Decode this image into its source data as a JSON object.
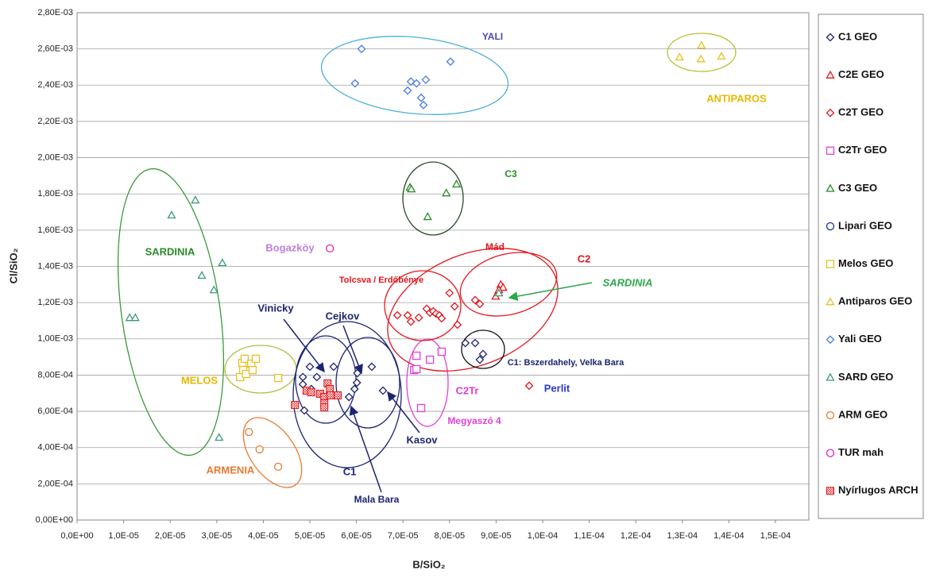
{
  "chart_data": {
    "type": "scatter",
    "x_label": "B/SiO₂",
    "y_label": "Cl/SiO₂",
    "xlim": [
      0,
      0.00015
    ],
    "ylim": [
      0,
      0.0028
    ],
    "grid": true,
    "legend": "right",
    "xticks": [
      {
        "value": 0,
        "label": "0,0E+00"
      },
      {
        "value": 1e-05,
        "label": "1,0E-05"
      },
      {
        "value": 2e-05,
        "label": "2,0E-05"
      },
      {
        "value": 3e-05,
        "label": "3,0E-05"
      },
      {
        "value": 4e-05,
        "label": "4,0E-05"
      },
      {
        "value": 5e-05,
        "label": "5,0E-05"
      },
      {
        "value": 6e-05,
        "label": "6,0E-05"
      },
      {
        "value": 7e-05,
        "label": "7,0E-05"
      },
      {
        "value": 8e-05,
        "label": "8,0E-05"
      },
      {
        "value": 9e-05,
        "label": "9,0E-05"
      },
      {
        "value": 0.0001,
        "label": "1,0E-04"
      },
      {
        "value": 0.00011,
        "label": "1,1E-04"
      },
      {
        "value": 0.00012,
        "label": "1,2E-04"
      },
      {
        "value": 0.00013,
        "label": "1,3E-04"
      },
      {
        "value": 0.00014,
        "label": "1,4E-04"
      },
      {
        "value": 0.00015,
        "label": "1,5E-04"
      }
    ],
    "yticks": [
      {
        "value": 0,
        "label": "0,00E+00"
      },
      {
        "value": 0.0002,
        "label": "2,00E-04"
      },
      {
        "value": 0.0004,
        "label": "4,00E-04"
      },
      {
        "value": 0.0006,
        "label": "6,00E-04"
      },
      {
        "value": 0.0008,
        "label": "8,00E-04"
      },
      {
        "value": 0.001,
        "label": "1,00E-03"
      },
      {
        "value": 0.0012,
        "label": "1,20E-03"
      },
      {
        "value": 0.0014,
        "label": "1,40E-03"
      },
      {
        "value": 0.0016,
        "label": "1,60E-03"
      },
      {
        "value": 0.0018,
        "label": "1,80E-03"
      },
      {
        "value": 0.002,
        "label": "2,00E-03"
      },
      {
        "value": 0.0022,
        "label": "2,20E-03"
      },
      {
        "value": 0.0024,
        "label": "2,40E-03"
      },
      {
        "value": 0.0026,
        "label": "2,60E-03"
      },
      {
        "value": 0.0028,
        "label": "2,80E-03"
      }
    ],
    "series": [
      {
        "name": "C1 GEO",
        "color": "#1c2470",
        "marker": "diamond",
        "x": [
          5e-05,
          4.85e-05,
          4.85e-05,
          5.03e-05,
          5.15e-05,
          5.51e-05,
          4.88e-05,
          5.84e-05,
          5.96e-05,
          6.01e-05,
          6.02e-05,
          6.33e-05,
          6.57e-05,
          8.34e-05,
          8.55e-05,
          8.72e-05,
          8.65e-05
        ],
        "values": [
          0.000846,
          0.000789,
          0.000749,
          0.000723,
          0.000789,
          0.000846,
          0.000605,
          0.000679,
          0.000723,
          0.000758,
          0.000811,
          0.000846,
          0.000714,
          0.000977,
          0.000977,
          0.000916,
          0.000885
        ]
      },
      {
        "name": "C2E GEO",
        "color": "#e3161c",
        "marker": "triangle",
        "x": [
          8.99e-05,
          9.1e-05,
          9.15e-05,
          9.06e-05
        ],
        "values": [
          0.001235,
          0.0013,
          0.001284,
          0.001271
        ]
      },
      {
        "name": "C2T GEO",
        "color": "#e3161c",
        "marker": "diamond",
        "x": [
          6.88e-05,
          7.1e-05,
          7.17e-05,
          7.34e-05,
          7.51e-05,
          7.58e-05,
          7.65e-05,
          7.71e-05,
          7.78e-05,
          7.83e-05,
          8e-05,
          8.11e-05,
          8.17e-05,
          8.55e-05,
          8.65e-05,
          9.71e-05
        ],
        "values": [
          0.00113,
          0.00113,
          0.001095,
          0.001117,
          0.001166,
          0.001144,
          0.001152,
          0.001139,
          0.00113,
          0.001113,
          0.001253,
          0.001179,
          0.001078,
          0.001214,
          0.001192,
          0.000741
        ]
      },
      {
        "name": "C2Tr GEO",
        "color": "#e040d8",
        "marker": "square",
        "x": [
          7.29e-05,
          7.24e-05,
          7.29e-05,
          7.58e-05,
          7.83e-05,
          7.39e-05
        ],
        "values": [
          0.000907,
          0.000828,
          0.000833,
          0.000885,
          0.000929,
          0.000618
        ]
      },
      {
        "name": "C3 GEO",
        "color": "#2a8a2a",
        "marker": "triangle",
        "x": [
          7.15e-05,
          7.18e-05,
          7.93e-05,
          8.15e-05,
          7.53e-05
        ],
        "values": [
          0.001836,
          0.001827,
          0.001805,
          0.001854,
          0.001674
        ]
      },
      {
        "name": "Lipari GEO",
        "color": "#1a2a9a",
        "marker": "circle",
        "x": [],
        "values": []
      },
      {
        "name": "Melos GEO",
        "color": "#e8c020",
        "marker": "square",
        "x": [
          3.5e-05,
          3.57e-05,
          3.55e-05,
          3.6e-05,
          3.74e-05,
          3.84e-05,
          3.63e-05,
          3.77e-05,
          4.32e-05
        ],
        "values": [
          0.000789,
          0.000828,
          0.000868,
          0.00089,
          0.000863,
          0.00089,
          0.000806,
          0.000828,
          0.000784
        ]
      },
      {
        "name": "Antiparos GEO",
        "color": "#e8c020",
        "marker": "triangle",
        "x": [
          0.0001294,
          0.0001341,
          0.000134,
          0.0001384
        ],
        "values": [
          0.002555,
          0.00262,
          0.002545,
          0.00256
        ]
      },
      {
        "name": "Yali GEO",
        "color": "#4a7ae0",
        "marker": "diamond",
        "x": [
          6.11e-05,
          5.97e-05,
          7.1e-05,
          7.17e-05,
          7.29e-05,
          7.49e-05,
          7.39e-05,
          7.44e-05,
          8.02e-05
        ],
        "values": [
          0.0026,
          0.00241,
          0.00237,
          0.00242,
          0.00241,
          0.00243,
          0.00233,
          0.00229,
          0.00253
        ]
      },
      {
        "name": "SARD GEO",
        "color": "#3a9a7a",
        "marker": "triangle",
        "x": [
          1.13e-05,
          1.25e-05,
          2.03e-05,
          2.54e-05,
          2.68e-05,
          3.12e-05,
          2.94e-05,
          3.05e-05,
          9.06e-05
        ],
        "values": [
          0.001117,
          0.001117,
          0.001683,
          0.001766,
          0.00135,
          0.00142,
          0.00127,
          0.000456,
          0.001253
        ]
      },
      {
        "name": "ARM GEO",
        "color": "#e87a30",
        "marker": "circle",
        "x": [
          3.69e-05,
          3.92e-05,
          4.32e-05
        ],
        "values": [
          0.000486,
          0.00039,
          0.000294
        ]
      },
      {
        "name": "TUR mah",
        "color": "#e020c0",
        "marker": "circle",
        "x": [
          5.43e-05
        ],
        "values": [
          0.001499
        ]
      },
      {
        "name": "Nyírlugos ARCH",
        "color": "#e3161c",
        "marker": "xsquare",
        "x": [
          4.68e-05,
          4.93e-05,
          5.03e-05,
          5.22e-05,
          5.31e-05,
          5.31e-05,
          5.31e-05,
          5.38e-05,
          5.43e-05,
          5.44e-05,
          5.6e-05
        ],
        "values": [
          0.000635,
          0.000714,
          0.000705,
          0.000697,
          0.000679,
          0.000644,
          0.000622,
          0.000754,
          0.000723,
          0.000688,
          0.000688
        ]
      }
    ],
    "annotations": [
      "YALI",
      "ANTIPAROS",
      "C3",
      "SARDINIA",
      "Bogazköy",
      "Mád",
      "C2",
      "Tolcsva / Erdőbénye",
      "SARDINIA",
      "Vinicky",
      "Cejkov",
      "C1: Bszerdahely, Velka Bara",
      "MELOS",
      "C2Tr",
      "Perlit",
      "Megyaszó 4",
      "Kasov",
      "C1",
      "ARMENIA",
      "Mala Bara"
    ]
  }
}
